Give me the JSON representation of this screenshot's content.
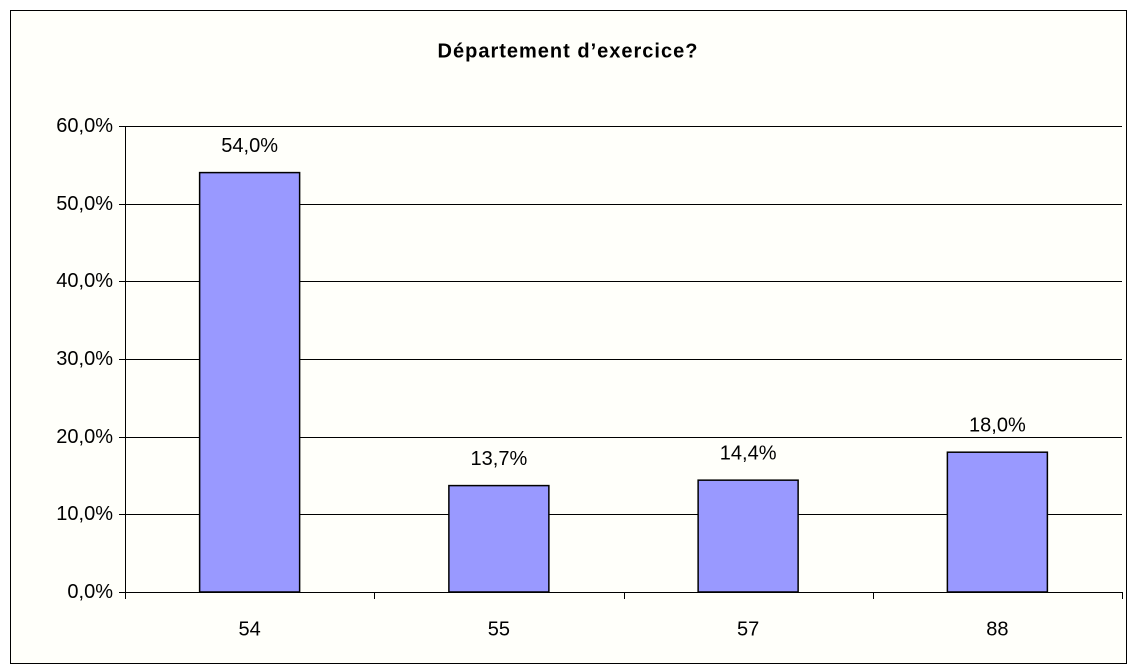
{
  "chart_data": {
    "type": "bar",
    "title": "Département d’exercice?",
    "categories": [
      "54",
      "55",
      "57",
      "88"
    ],
    "values": [
      54.0,
      13.7,
      14.4,
      18.0
    ],
    "value_labels": [
      "54,0%",
      "13,7%",
      "14,4%",
      "18,0%"
    ],
    "color": "#9999ff",
    "ylim": [
      0,
      60
    ],
    "yticks": [
      {
        "value": 0,
        "label": "0,0%"
      },
      {
        "value": 10,
        "label": "10,0%"
      },
      {
        "value": 20,
        "label": "20,0%"
      },
      {
        "value": 30,
        "label": "30,0%"
      },
      {
        "value": 40,
        "label": "40,0%"
      },
      {
        "value": 50,
        "label": "50,0%"
      },
      {
        "value": 60,
        "label": "60,0%"
      }
    ],
    "grid": true
  }
}
